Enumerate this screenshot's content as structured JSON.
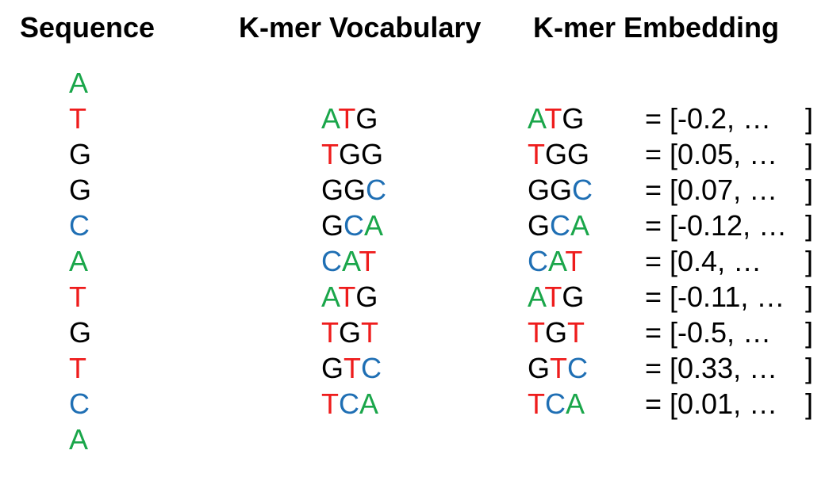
{
  "headers": {
    "sequence": "Sequence",
    "vocabulary": "K-mer Vocabulary",
    "embedding": "K-mer Embedding"
  },
  "nucleotide_colors": {
    "A": "#1aa64a",
    "T": "#ee1c1c",
    "G": "#000000",
    "C": "#1f6fb4"
  },
  "sequence": [
    "A",
    "T",
    "G",
    "G",
    "C",
    "A",
    "T",
    "G",
    "T",
    "C",
    "A"
  ],
  "kmers": [
    "ATG",
    "TGG",
    "GGC",
    "GCA",
    "CAT",
    "ATG",
    "TGT",
    "GTC",
    "TCA"
  ],
  "embeddings": [
    {
      "kmer": "ATG",
      "open": "= [-0.2, …",
      "close": "]"
    },
    {
      "kmer": "TGG",
      "open": "= [0.05, …",
      "close": "]"
    },
    {
      "kmer": "GGC",
      "open": "= [0.07, …",
      "close": "]"
    },
    {
      "kmer": "GCA",
      "open": "= [-0.12, …",
      "close": "]"
    },
    {
      "kmer": "CAT",
      "open": "= [0.4, …",
      "close": "]"
    },
    {
      "kmer": "ATG",
      "open": "= [-0.11, …",
      "close": "]"
    },
    {
      "kmer": "TGT",
      "open": "= [-0.5, …",
      "close": "]"
    },
    {
      "kmer": "GTC",
      "open": "= [0.33, …",
      "close": "]"
    },
    {
      "kmer": "TCA",
      "open": "= [0.01, …",
      "close": "]"
    }
  ]
}
